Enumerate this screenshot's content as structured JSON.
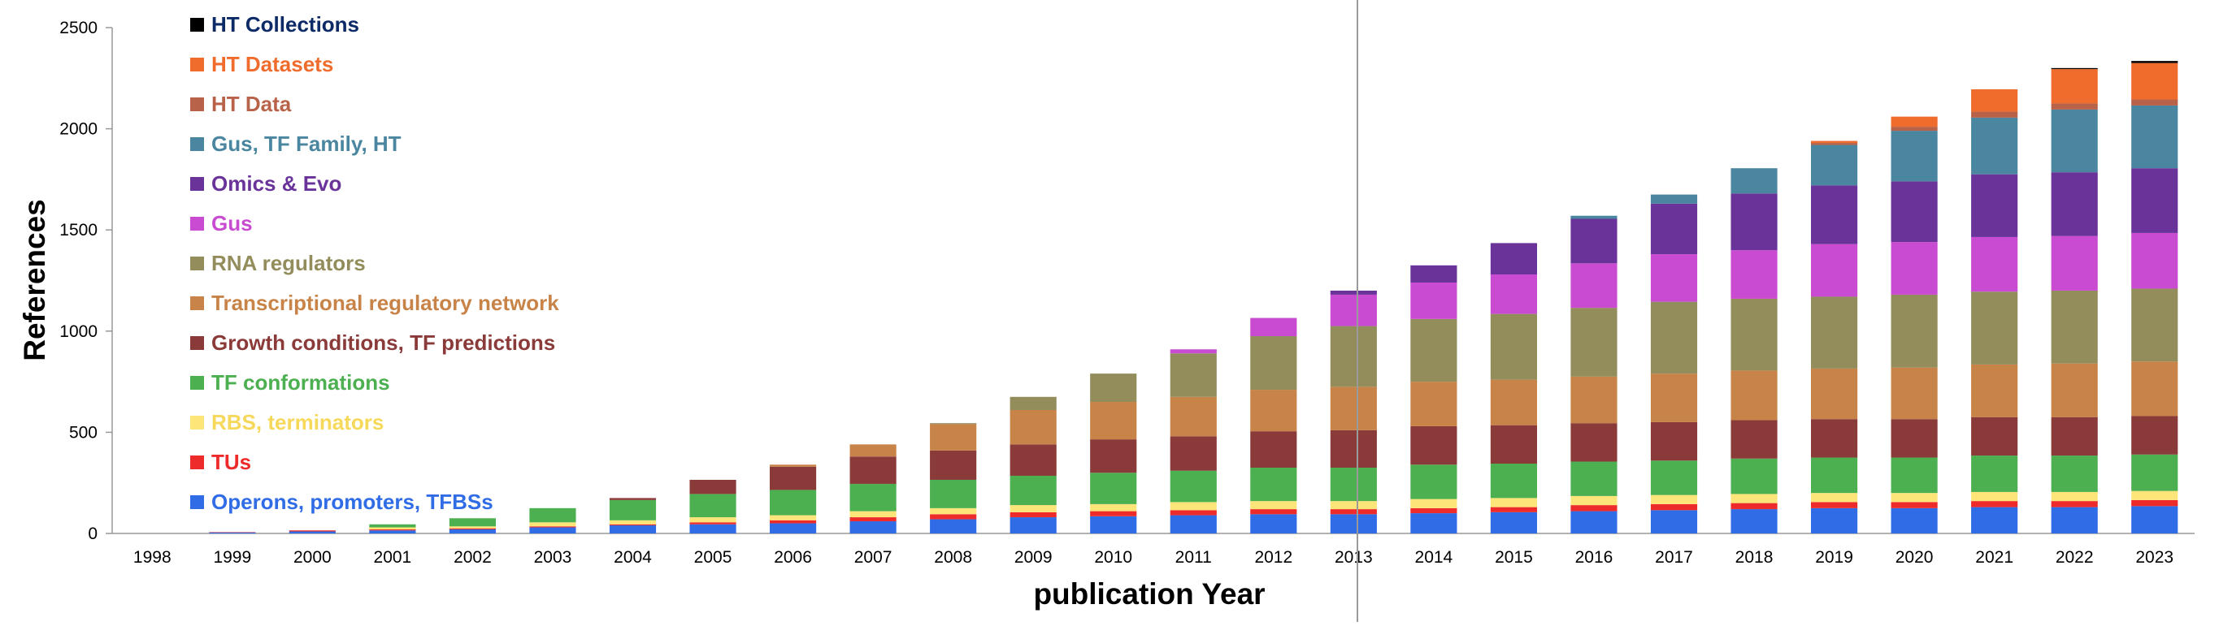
{
  "chart_data": {
    "type": "bar",
    "stacked": true,
    "xlabel": "publication Year",
    "ylabel": "References",
    "ylim": [
      0,
      2500
    ],
    "yticks": [
      0,
      500,
      1000,
      1500,
      2000,
      2500
    ],
    "grid": false,
    "legend_position": "top-left",
    "categories": [
      "1998",
      "1999",
      "2000",
      "2001",
      "2002",
      "2003",
      "2004",
      "2005",
      "2006",
      "2007",
      "2008",
      "2009",
      "2010",
      "2011",
      "2012",
      "2013",
      "2014",
      "2015",
      "2016",
      "2017",
      "2018",
      "2019",
      "2020",
      "2021",
      "2022",
      "2023"
    ],
    "series": [
      {
        "name": "Operons, promoters, TFBSs",
        "color": "#2f6ce6",
        "values": [
          0,
          5,
          10,
          15,
          20,
          30,
          40,
          45,
          50,
          60,
          70,
          80,
          85,
          90,
          95,
          95,
          100,
          105,
          110,
          115,
          120,
          125,
          125,
          130,
          130,
          135
        ]
      },
      {
        "name": "TUs",
        "color": "#ee2b2b",
        "values": [
          0,
          2,
          5,
          5,
          5,
          5,
          5,
          10,
          15,
          20,
          25,
          25,
          25,
          25,
          25,
          25,
          25,
          25,
          30,
          30,
          30,
          30,
          30,
          30,
          30,
          30
        ]
      },
      {
        "name": "RBS, terminators",
        "color": "#fde57a",
        "values": [
          0,
          0,
          0,
          10,
          10,
          20,
          20,
          25,
          25,
          30,
          30,
          35,
          35,
          40,
          40,
          40,
          45,
          45,
          45,
          45,
          45,
          45,
          45,
          45,
          45,
          45
        ]
      },
      {
        "name": "TF conformations",
        "color": "#4caf50",
        "values": [
          0,
          0,
          0,
          15,
          40,
          70,
          100,
          115,
          125,
          135,
          140,
          145,
          155,
          155,
          165,
          165,
          170,
          170,
          170,
          170,
          175,
          175,
          175,
          180,
          180,
          180
        ]
      },
      {
        "name": "Growth conditions, TF predictions",
        "color": "#8b3a3a",
        "values": [
          0,
          0,
          0,
          0,
          0,
          0,
          10,
          70,
          115,
          135,
          145,
          155,
          165,
          170,
          180,
          185,
          190,
          190,
          190,
          190,
          190,
          190,
          190,
          190,
          190,
          190
        ]
      },
      {
        "name": "Transcriptional regulatory network",
        "color": "#c88448",
        "values": [
          0,
          0,
          0,
          0,
          0,
          0,
          0,
          0,
          10,
          60,
          130,
          170,
          185,
          195,
          205,
          215,
          220,
          225,
          230,
          240,
          245,
          250,
          255,
          260,
          265,
          270
        ]
      },
      {
        "name": "RNA regulators",
        "color": "#938d5c",
        "values": [
          0,
          0,
          0,
          0,
          0,
          0,
          0,
          0,
          0,
          0,
          5,
          65,
          140,
          215,
          265,
          300,
          310,
          325,
          340,
          355,
          355,
          355,
          360,
          360,
          360,
          360
        ]
      },
      {
        "name": "Gus",
        "color": "#c94bd1",
        "values": [
          0,
          0,
          0,
          0,
          0,
          0,
          0,
          0,
          0,
          0,
          0,
          0,
          0,
          20,
          90,
          155,
          180,
          195,
          220,
          235,
          240,
          260,
          260,
          270,
          270,
          275
        ]
      },
      {
        "name": "Omics & Evo",
        "color": "#6a3399",
        "values": [
          0,
          0,
          0,
          0,
          0,
          0,
          0,
          0,
          0,
          0,
          0,
          0,
          0,
          0,
          0,
          20,
          85,
          155,
          220,
          250,
          280,
          290,
          300,
          310,
          315,
          320
        ]
      },
      {
        "name": "Gus, TF Family, HT",
        "color": "#4a86a0",
        "values": [
          0,
          0,
          0,
          0,
          0,
          0,
          0,
          0,
          0,
          0,
          0,
          0,
          0,
          0,
          0,
          0,
          0,
          0,
          15,
          45,
          125,
          200,
          250,
          280,
          310,
          310
        ]
      },
      {
        "name": "HT Data",
        "color": "#b8624a",
        "values": [
          0,
          0,
          0,
          0,
          0,
          0,
          0,
          0,
          0,
          0,
          0,
          0,
          0,
          0,
          0,
          0,
          0,
          0,
          0,
          0,
          0,
          10,
          20,
          30,
          30,
          30
        ]
      },
      {
        "name": "HT Datasets",
        "color": "#ef6c2c",
        "values": [
          0,
          0,
          0,
          0,
          0,
          0,
          0,
          0,
          0,
          0,
          0,
          0,
          0,
          0,
          0,
          0,
          0,
          0,
          0,
          0,
          0,
          10,
          50,
          110,
          170,
          180
        ]
      },
      {
        "name": "HT Collections",
        "color": "#000000",
        "values": [
          0,
          0,
          0,
          0,
          0,
          0,
          0,
          0,
          0,
          0,
          0,
          0,
          0,
          0,
          0,
          0,
          0,
          0,
          0,
          0,
          0,
          0,
          0,
          0,
          5,
          10
        ]
      }
    ]
  }
}
